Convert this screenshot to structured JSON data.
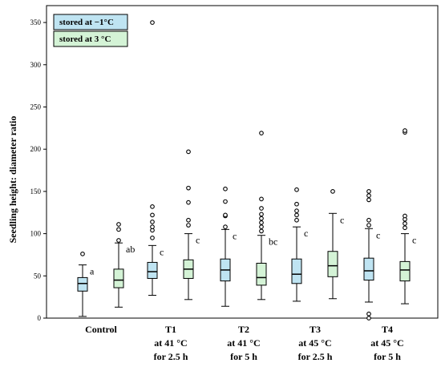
{
  "chart_data": {
    "type": "box",
    "ylabel": "Seedling height: diameter ratio",
    "ylim": [
      0,
      370
    ],
    "yticks": [
      0,
      50,
      100,
      150,
      200,
      250,
      300,
      350
    ],
    "categories": [
      {
        "lines": [
          "Control"
        ]
      },
      {
        "lines": [
          "T1",
          "at 41 °C",
          "for 2.5 h"
        ]
      },
      {
        "lines": [
          "T2",
          "at 41 °C",
          "for 5 h"
        ]
      },
      {
        "lines": [
          "T3",
          "at 45 °C",
          "for 2.5 h"
        ]
      },
      {
        "lines": [
          "T4",
          "at 45 °C",
          "for 5 h"
        ]
      }
    ],
    "series": [
      {
        "name": "stored at −1°C",
        "color": "#bfe4f2",
        "boxes": [
          {
            "min": 2,
            "q1": 32,
            "median": 41,
            "q3": 48,
            "max": 63,
            "outliers": [
              76
            ],
            "letter": "a"
          },
          {
            "min": 27,
            "q1": 47,
            "median": 55,
            "q3": 66,
            "max": 86,
            "outliers": [
              95,
              104,
              108,
              114,
              122,
              132,
              350
            ],
            "letter": "c"
          },
          {
            "min": 14,
            "q1": 44,
            "median": 57,
            "q3": 70,
            "max": 105,
            "outliers": [
              108,
              121,
              122,
              138,
              153
            ],
            "letter": "c"
          },
          {
            "min": 20,
            "q1": 41,
            "median": 52,
            "q3": 70,
            "max": 108,
            "outliers": [
              116,
              122,
              127,
              135,
              152
            ],
            "letter": "c"
          },
          {
            "min": 19,
            "q1": 45,
            "median": 56,
            "q3": 71,
            "max": 106,
            "outliers": [
              0,
              5,
              110,
              116,
              140,
              145,
              150
            ],
            "letter": "c"
          }
        ]
      },
      {
        "name": "stored at 3 °C",
        "color": "#d4f3d6",
        "boxes": [
          {
            "min": 13,
            "q1": 36,
            "median": 45,
            "q3": 58,
            "max": 89,
            "outliers": [
              92,
              105,
              111
            ],
            "letter": "ab"
          },
          {
            "min": 22,
            "q1": 47,
            "median": 58,
            "q3": 69,
            "max": 100,
            "outliers": [
              110,
              116,
              137,
              154,
              197
            ],
            "letter": "c"
          },
          {
            "min": 22,
            "q1": 39,
            "median": 48,
            "q3": 65,
            "max": 98,
            "outliers": [
              103,
              108,
              113,
              118,
              123,
              130,
              141,
              219
            ],
            "letter": "bc"
          },
          {
            "min": 23,
            "q1": 49,
            "median": 62,
            "q3": 79,
            "max": 124,
            "outliers": [
              150
            ],
            "letter": "c"
          },
          {
            "min": 17,
            "q1": 44,
            "median": 57,
            "q3": 67,
            "max": 100,
            "outliers": [
              107,
              112,
              117,
              121,
              220,
              222
            ],
            "letter": "c"
          }
        ]
      }
    ],
    "legend_position": "top-left",
    "grid": false
  }
}
